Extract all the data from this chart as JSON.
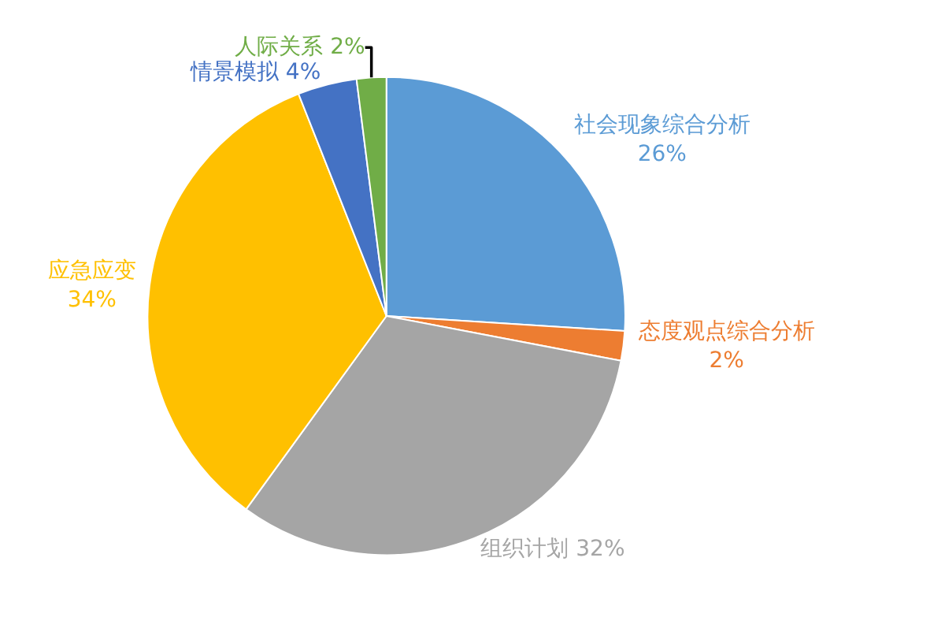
{
  "chart_data": {
    "type": "pie",
    "categories": [
      "社会现象综合分析",
      "态度观点综合分析",
      "组织计划",
      "应急应变",
      "情景模拟",
      "人际关系"
    ],
    "values": [
      26,
      2,
      32,
      34,
      4,
      2
    ],
    "value_labels": [
      "26%",
      "2%",
      "32%",
      "34%",
      "4%",
      "2%"
    ],
    "colors": [
      "#5b9bd5",
      "#ed7d31",
      "#a5a5a5",
      "#ffc000",
      "#4472c4",
      "#70ad47"
    ],
    "legend": false
  }
}
